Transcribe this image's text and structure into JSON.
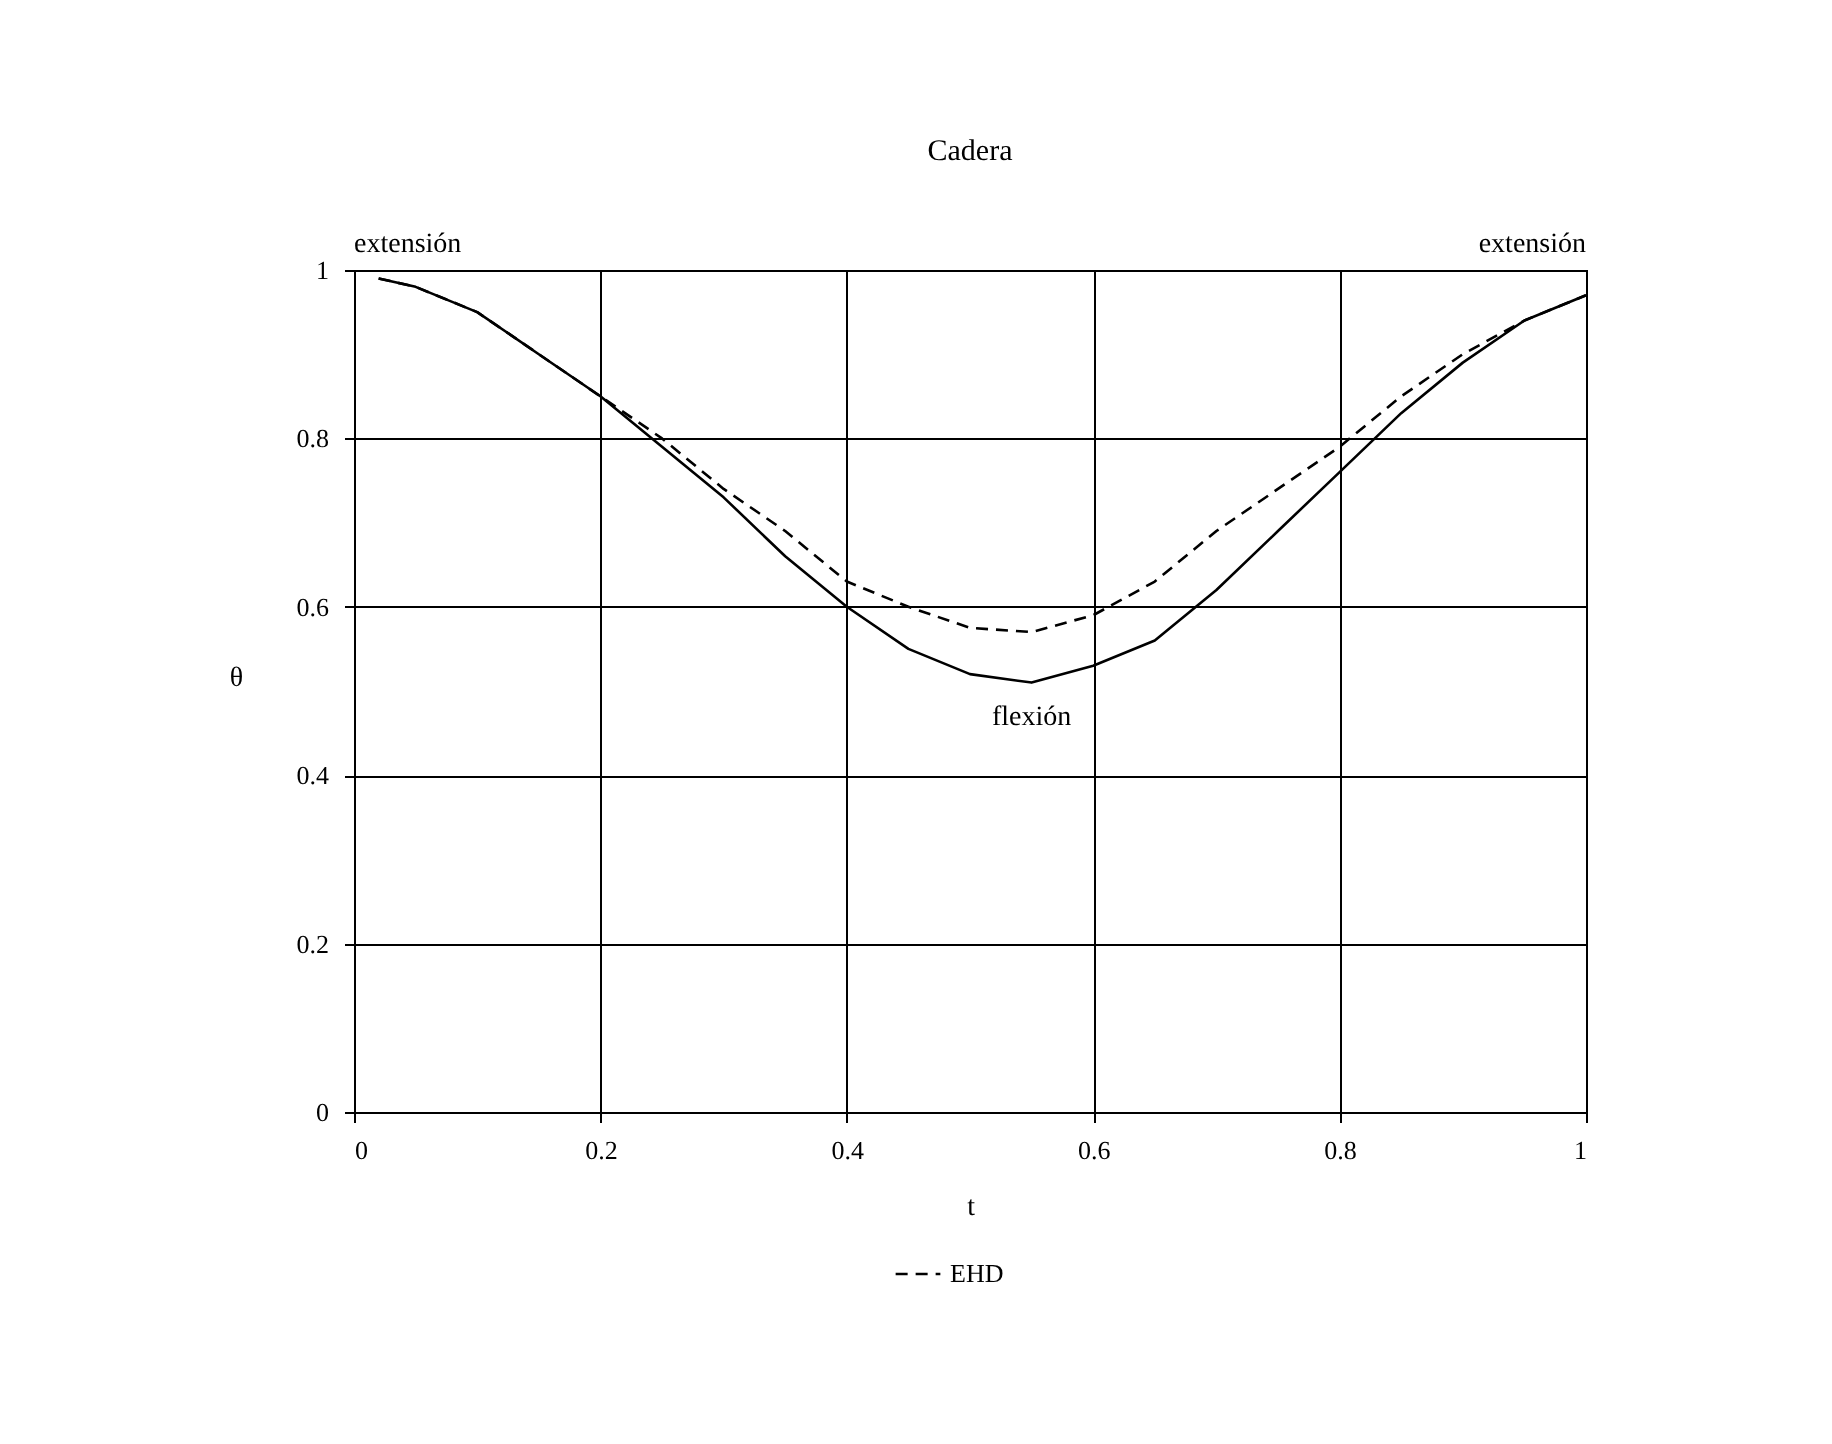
{
  "chart_data": {
    "type": "line",
    "title": "Cadera",
    "xlabel": "t",
    "ylabel": "θ",
    "x": [
      0.02,
      0.05,
      0.1,
      0.15,
      0.2,
      0.25,
      0.3,
      0.35,
      0.4,
      0.45,
      0.5,
      0.55,
      0.6,
      0.65,
      0.7,
      0.75,
      0.8,
      0.85,
      0.9,
      0.95,
      1.0
    ],
    "series": [
      {
        "color": "#000000",
        "line_style": "solid",
        "values": [
          0.99,
          0.98,
          0.95,
          0.9,
          0.85,
          0.79,
          0.73,
          0.66,
          0.6,
          0.55,
          0.52,
          0.51,
          0.53,
          0.56,
          0.62,
          0.69,
          0.76,
          0.83,
          0.89,
          0.94,
          0.97
        ]
      },
      {
        "name": "EHD",
        "color": "#000000",
        "line_style": "dashed",
        "values": [
          0.99,
          0.98,
          0.95,
          0.9,
          0.85,
          0.8,
          0.74,
          0.69,
          0.63,
          0.6,
          0.575,
          0.57,
          0.59,
          0.63,
          0.69,
          0.74,
          0.79,
          0.85,
          0.9,
          0.94,
          0.97
        ]
      }
    ],
    "annotations": [
      "extensión",
      "extensión",
      {
        "text": "flexión",
        "x": 0.55,
        "y": 0.51
      }
    ],
    "xlim": [
      0,
      1
    ],
    "xticks": [
      0,
      0.2,
      0.4,
      0.6,
      0.8,
      1
    ],
    "ylim": [
      0,
      1
    ],
    "yticks": [
      0,
      0.2,
      0.4,
      0.6,
      0.8,
      1
    ],
    "grid": true,
    "legend": "bottom",
    "marker": "none"
  }
}
